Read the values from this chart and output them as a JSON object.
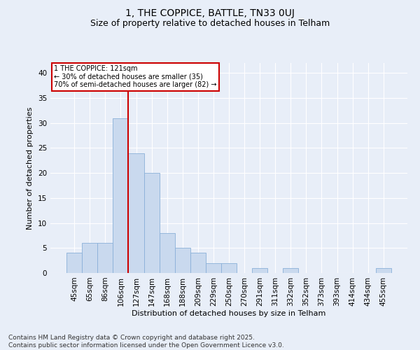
{
  "title1": "1, THE COPPICE, BATTLE, TN33 0UJ",
  "title2": "Size of property relative to detached houses in Telham",
  "xlabel": "Distribution of detached houses by size in Telham",
  "ylabel": "Number of detached properties",
  "categories": [
    "45sqm",
    "65sqm",
    "86sqm",
    "106sqm",
    "127sqm",
    "147sqm",
    "168sqm",
    "188sqm",
    "209sqm",
    "229sqm",
    "250sqm",
    "270sqm",
    "291sqm",
    "311sqm",
    "332sqm",
    "352sqm",
    "373sqm",
    "393sqm",
    "414sqm",
    "434sqm",
    "455sqm"
  ],
  "values": [
    4,
    6,
    6,
    31,
    24,
    20,
    8,
    5,
    4,
    2,
    2,
    0,
    1,
    0,
    1,
    0,
    0,
    0,
    0,
    0,
    1
  ],
  "bar_color": "#c9d9ee",
  "bar_edge_color": "#8ab0d8",
  "vline_x_index": 3,
  "vline_color": "#cc0000",
  "ylim": [
    0,
    42
  ],
  "yticks": [
    0,
    5,
    10,
    15,
    20,
    25,
    30,
    35,
    40
  ],
  "annotation_text": "1 THE COPPICE: 121sqm\n← 30% of detached houses are smaller (35)\n70% of semi-detached houses are larger (82) →",
  "annotation_box_color": "#ffffff",
  "annotation_box_edge": "#cc0000",
  "footer_text": "Contains HM Land Registry data © Crown copyright and database right 2025.\nContains public sector information licensed under the Open Government Licence v3.0.",
  "background_color": "#e8eef8",
  "plot_bg_color": "#e8eef8",
  "grid_color": "#ffffff",
  "title_fontsize": 10,
  "subtitle_fontsize": 9,
  "label_fontsize": 8,
  "tick_fontsize": 7.5,
  "footer_fontsize": 6.5
}
